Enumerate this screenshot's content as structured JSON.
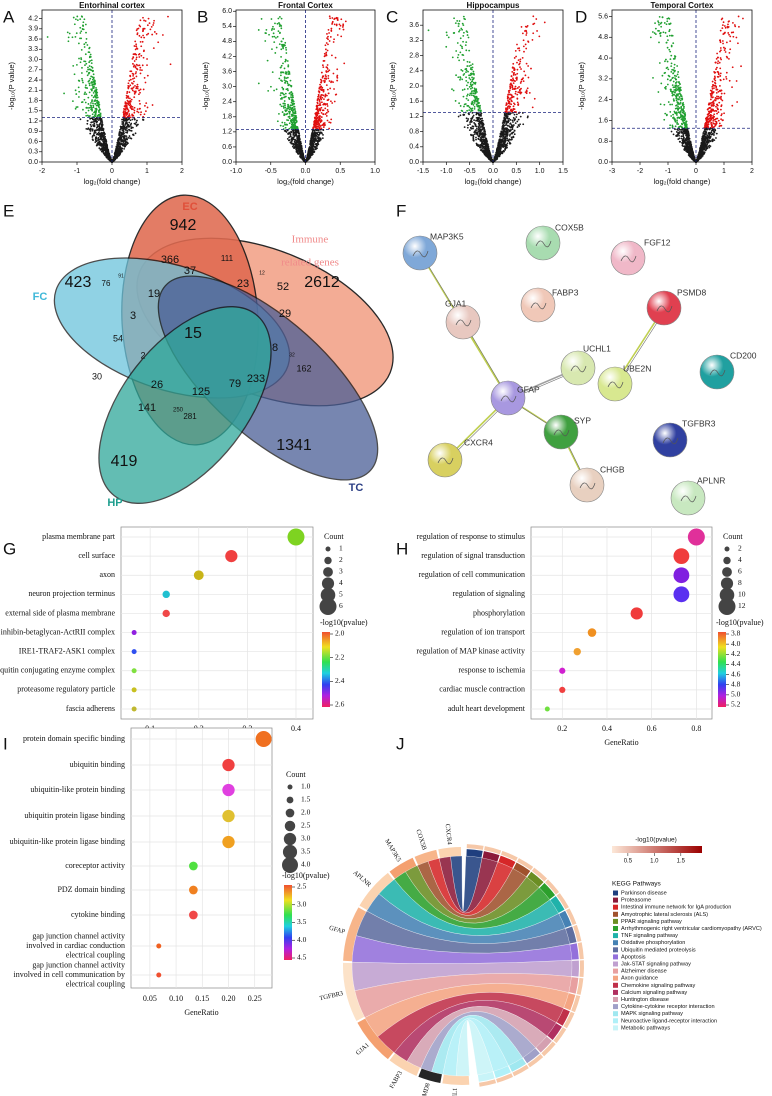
{
  "panels": [
    "A",
    "B",
    "C",
    "D",
    "E",
    "F",
    "G",
    "H",
    "I",
    "J"
  ],
  "volcano": [
    {
      "title": "Entorhinal cortex",
      "xlabel": "log₂(fold change)",
      "ylabel": "-log₁₀(P value)",
      "xlim": [
        -2,
        2
      ],
      "xticks": [
        -2,
        -1,
        0,
        1,
        2
      ],
      "ylim": [
        0,
        4.45
      ],
      "yticks": [
        {
          "value": 0,
          "label": "0.0"
        },
        0.3,
        0.6,
        0.9,
        1.2,
        1.5,
        1.8,
        2.1,
        2.4,
        2.7,
        {
          "value": 3,
          "label": "3.0"
        },
        3.3,
        3.6,
        3.9,
        4.2
      ],
      "threshold": 1.3
    },
    {
      "title": "Frontal Cortex",
      "xlabel": "log₂(fold change)",
      "ylabel": "-log₁₀(P value)",
      "xlim": [
        -1,
        1
      ],
      "xticks": [
        {
          "value": -1,
          "label": "-1.0"
        },
        -0.5,
        {
          "value": 0,
          "label": "0.0"
        },
        0.5,
        {
          "value": 1,
          "label": "1.0"
        }
      ],
      "ylim": [
        0,
        6.05
      ],
      "yticks": [
        {
          "value": 0,
          "label": "0.0"
        },
        0.6,
        1.2,
        1.8,
        2.4,
        {
          "value": 3,
          "label": "3.0"
        },
        3.6,
        4.2,
        4.8,
        5.4,
        {
          "value": 6,
          "label": "6.0"
        }
      ],
      "threshold": 1.3
    },
    {
      "title": "Hippocampus",
      "xlabel": "log₂(fold change)",
      "ylabel": "-log₁₀(P value)",
      "xlim": [
        -1.5,
        1.5
      ],
      "xticks": [
        -1.5,
        {
          "value": -1,
          "label": "-1.0"
        },
        -0.5,
        {
          "value": 0,
          "label": "0.0"
        },
        0.5,
        {
          "value": 1,
          "label": "1.0"
        },
        1.5
      ],
      "ylim": [
        0,
        4.0
      ],
      "yticks": [
        {
          "value": 0,
          "label": "0.0"
        },
        0.4,
        0.8,
        1.2,
        1.6,
        {
          "value": 2,
          "label": "2.0"
        },
        2.4,
        2.8,
        3.2,
        3.6
      ],
      "threshold": 1.3
    },
    {
      "title": "Temporal Cortex",
      "xlabel": "log₂(fold change)",
      "ylabel": "-log₁₀(P value)",
      "xlim": [
        -3,
        2
      ],
      "xticks": [
        -3,
        -2,
        -1,
        0,
        1,
        2
      ],
      "ylim": [
        0,
        5.85
      ],
      "yticks": [
        {
          "value": 0,
          "label": "0.0"
        },
        0.8,
        1.6,
        2.4,
        3.2,
        {
          "value": 4,
          "label": "4.0"
        },
        4.8,
        5.6
      ],
      "threshold": 1.3
    }
  ],
  "venn": {
    "sets": [
      "EC",
      "FC",
      "HP",
      "TC"
    ],
    "immune": [
      "Immune",
      "related genes"
    ],
    "regions": [
      942,
      2612,
      1341,
      419,
      423,
      366,
      111,
      76,
      91,
      37,
      23,
      12,
      52,
      19,
      3,
      15,
      29,
      54,
      2,
      8,
      162,
      32,
      30,
      26,
      125,
      79,
      233,
      141,
      250,
      281
    ]
  },
  "network": {
    "nodes": [
      "MAP3K5",
      "COX5B",
      "FGF12",
      "FABP3",
      "PSMD8",
      "GJA1",
      "UCHL1",
      "GFAP",
      "UBE2N",
      "CD200",
      "SYP",
      "TGFBR3",
      "CXCR4",
      "CHGB",
      "APLNR"
    ]
  },
  "dotplots": [
    {
      "categories": [
        "plasma membrane part",
        "cell surface",
        "axon",
        "neuron projection terminus",
        "external side of plasma membrane",
        "inhibin-betaglycan-ActRII complex",
        "IRE1-TRAF2-ASK1 complex",
        "ubiquitin conjugating enzyme complex",
        "proteasome regulatory particle",
        "fascia adherens"
      ],
      "x": [
        0.4,
        0.267,
        0.2,
        0.133,
        0.133,
        0.067,
        0.067,
        0.067,
        0.067,
        0.067
      ],
      "counts": [
        6,
        4,
        3,
        2,
        2,
        1,
        1,
        1,
        1,
        1
      ],
      "colors": [
        "#7ed321",
        "#f04040",
        "#c8b418",
        "#20c0d0",
        "#f04848",
        "#9020e0",
        "#3050f0",
        "#80e040",
        "#c8c020",
        "#c0b830"
      ],
      "xlabel": "GeneRatio",
      "xlim": [
        0.04,
        0.435
      ],
      "xticks": [
        0.1,
        0.2,
        0.3,
        0.4
      ],
      "size_title": "Count",
      "size_ticks": [
        1,
        2,
        3,
        4,
        5,
        6
      ],
      "color_title": "-log10(pvalue)",
      "color_ticks": [
        {
          "value": 2,
          "label": "2.0"
        },
        2.2,
        2.4,
        2.6
      ]
    },
    {
      "categories": [
        "regulation of response to stimulus",
        "regulation of signal transduction",
        "regulation of cell communication",
        "regulation of signaling",
        "phosphorylation",
        "regulation of ion transport",
        "regulation of MAP kinase activity",
        "response to ischemia",
        "cardiac muscle contraction",
        "adult heart development"
      ],
      "x": [
        0.8,
        0.733,
        0.733,
        0.733,
        0.533,
        0.333,
        0.267,
        0.2,
        0.2,
        0.133
      ],
      "counts": [
        12,
        11,
        11,
        11,
        8,
        5,
        4,
        3,
        3,
        2
      ],
      "colors": [
        "#e0309a",
        "#f03c3c",
        "#8020e0",
        "#5a30f0",
        "#f03c3c",
        "#f09020",
        "#f0a030",
        "#d020d0",
        "#f04040",
        "#70e040"
      ],
      "xlabel": "GeneRatio",
      "xlim": [
        0.06,
        0.87
      ],
      "xticks": [
        0.2,
        0.4,
        0.6,
        0.8
      ],
      "size_title": "Count",
      "size_ticks": [
        2,
        4,
        6,
        8,
        10,
        12
      ],
      "color_title": "-log10(pvalue)",
      "color_ticks": [
        3.8,
        {
          "value": 4,
          "label": "4.0"
        },
        4.2,
        4.4,
        4.6,
        4.8,
        {
          "value": 5,
          "label": "5.0"
        },
        5.2
      ]
    },
    {
      "categories": [
        "protein domain specific binding",
        "ubiquitin binding",
        "ubiquitin-like protein binding",
        "ubiquitin protein ligase binding",
        "ubiquitin-like protein ligase binding",
        "coreceptor activity",
        "PDZ domain binding",
        "cytokine binding",
        [
          "gap junction channel activity",
          "involved in cardiac conduction",
          "electrical coupling"
        ],
        [
          "gap junction channel activity",
          "involved in cell communication by",
          "electrical coupling"
        ]
      ],
      "x": [
        0.267,
        0.2,
        0.2,
        0.2,
        0.2,
        0.133,
        0.133,
        0.133,
        0.067,
        0.067
      ],
      "counts": [
        4,
        3,
        3,
        3,
        3,
        2,
        2,
        2,
        1,
        1
      ],
      "colors": [
        "#f07020",
        "#f04040",
        "#e040e0",
        "#e0c030",
        "#f0a020",
        "#50e040",
        "#f08020",
        "#f04848",
        "#f06020",
        "#f05030"
      ],
      "xlabel": "GeneRatio",
      "xlim": [
        0.014,
        0.283
      ],
      "xticks": [
        0.05,
        {
          "value": 0.1,
          "label": "0.10"
        },
        0.15,
        {
          "value": 0.2,
          "label": "0.20"
        },
        0.25
      ],
      "size_title": "Count",
      "size_ticks": [
        {
          "value": 1,
          "label": "1.0"
        },
        1.5,
        {
          "value": 2,
          "label": "2.0"
        },
        2.5,
        {
          "value": 3,
          "label": "3.0"
        },
        3.5,
        {
          "value": 4,
          "label": "4.0"
        }
      ],
      "color_title": "-log10(pvalue)",
      "color_ticks": [
        2.5,
        {
          "value": 3,
          "label": "3.0"
        },
        3.5,
        {
          "value": 4,
          "label": "4.0"
        },
        4.5
      ]
    }
  ],
  "chord": {
    "genes": [
      "CXCR4",
      "COX5B",
      "MAP3K5",
      "APLNR",
      "GFAP",
      "TGFBR3",
      "GJA1",
      "FABP3",
      "PSMD8",
      "UCHL1"
    ],
    "color_title": "-log10(pvalue)",
    "color_lim": [
      0.2,
      1.9
    ],
    "color_ticks": [
      0.5,
      {
        "value": 1,
        "label": "1.0"
      },
      1.5
    ],
    "legend_title": "KEGG Pathways",
    "pathways": [
      {
        "name": "Parkinson disease",
        "color": "#1f3f7f"
      },
      {
        "name": "Proteasome",
        "color": "#8b1a3a"
      },
      {
        "name": "Intestinal immune network for IgA production",
        "color": "#d62728"
      },
      {
        "name": "Amyotrophic lateral sclerosis (ALS)",
        "color": "#a0522d"
      },
      {
        "name": "PPAR signaling pathway",
        "color": "#6b8e23"
      },
      {
        "name": "Arrhythmogenic right ventricular cardiomyopathy (ARVC)",
        "color": "#2ca02c"
      },
      {
        "name": "TNF signaling pathway",
        "color": "#20b2aa"
      },
      {
        "name": "Oxidative phosphorylation",
        "color": "#4682b4"
      },
      {
        "name": "Ubiquitin mediated proteolysis",
        "color": "#5f6ea0"
      },
      {
        "name": "Apoptosis",
        "color": "#9370db"
      },
      {
        "name": "Jak-STAT signaling pathway",
        "color": "#c0a0d0"
      },
      {
        "name": "Alzheimer disease",
        "color": "#e8a0a0"
      },
      {
        "name": "Axon guidance",
        "color": "#f4a582"
      },
      {
        "name": "Chemokine signaling pathway",
        "color": "#c0304a"
      },
      {
        "name": "Calcium signaling pathway",
        "color": "#b03060"
      },
      {
        "name": "Huntington disease",
        "color": "#d4a0b0"
      },
      {
        "name": "Cytokine-cytokine receptor interaction",
        "color": "#a0a0c8"
      },
      {
        "name": "MAPK signaling pathway",
        "color": "#a0e8f0"
      },
      {
        "name": "Neuroactive ligand-receptor interaction",
        "color": "#b0f0f8"
      },
      {
        "name": "Metabolic pathways",
        "color": "#c8f4f8"
      }
    ]
  }
}
